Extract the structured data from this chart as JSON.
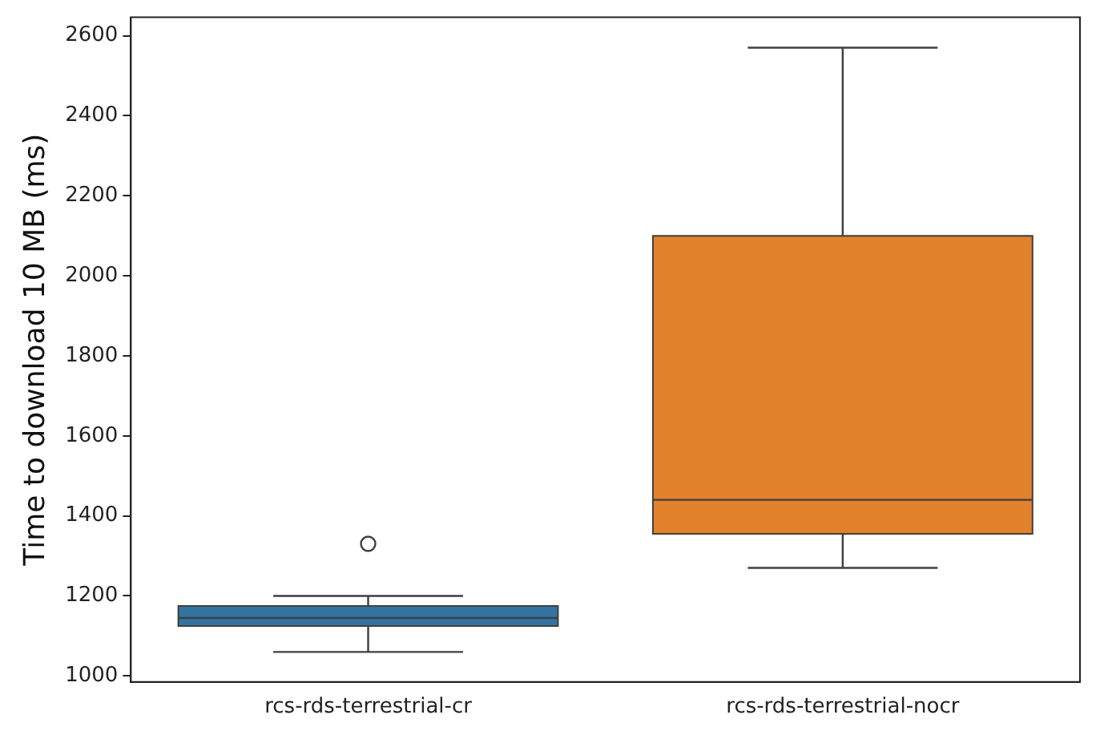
{
  "chart_data": {
    "type": "box",
    "ylabel": "Time to download 10 MB (ms)",
    "categories": [
      "rcs-rds-terrestrial-cr",
      "rcs-rds-terrestrial-nocr"
    ],
    "colors": [
      "#3274a1",
      "#e1812c"
    ],
    "boxes": [
      {
        "low": 1060,
        "q1": 1125,
        "median": 1145,
        "q3": 1175,
        "high": 1200,
        "outliers": [
          1330
        ]
      },
      {
        "low": 1270,
        "q1": 1355,
        "median": 1440,
        "q3": 2100,
        "high": 2570
      }
    ],
    "ylim": [
      985,
      2646
    ],
    "yticks": [
      1000,
      1200,
      1400,
      1600,
      1800,
      2000,
      2200,
      2400,
      2600
    ],
    "grid": false
  }
}
